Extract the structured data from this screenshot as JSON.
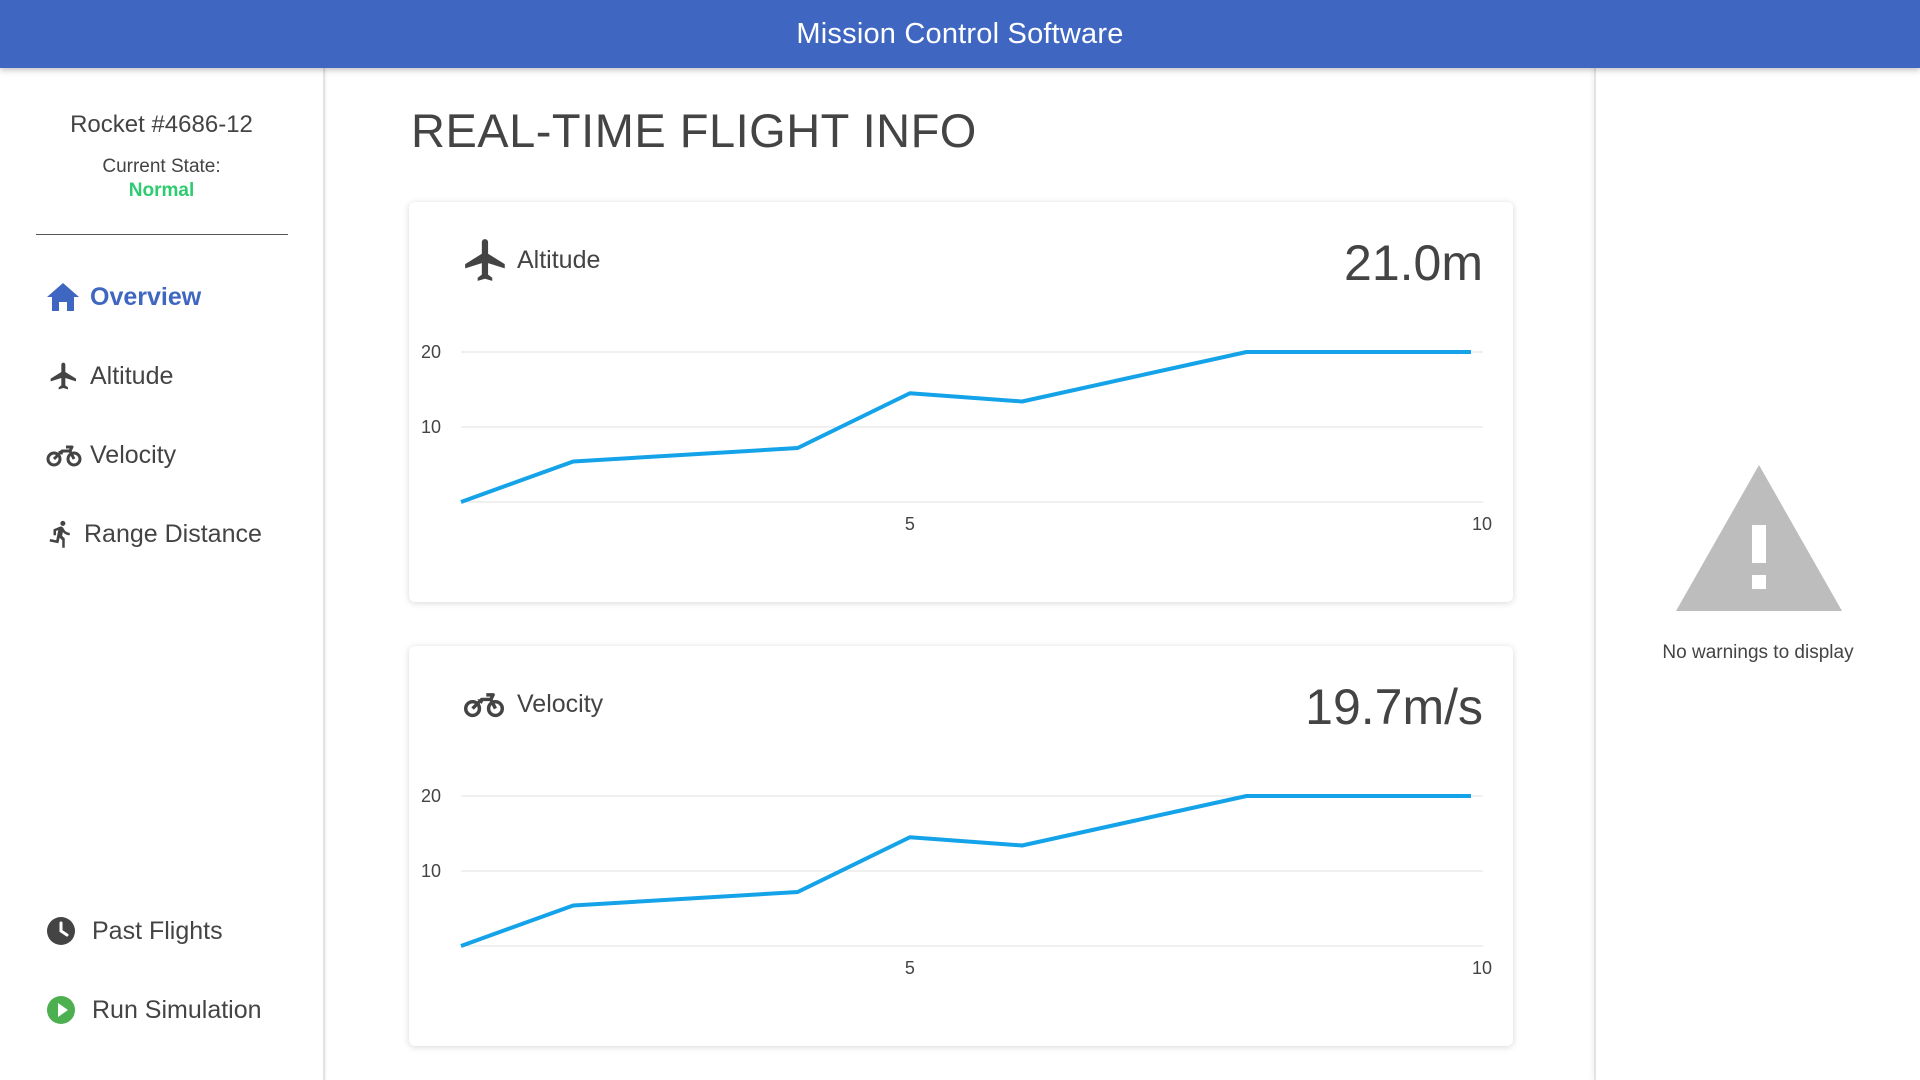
{
  "app": {
    "title": "Mission Control Software"
  },
  "sidebar": {
    "rocket_name": "Rocket #4686-12",
    "state_label": "Current State:",
    "state_value": "Normal",
    "state_color": "#2ecc71",
    "nav": [
      {
        "label": "Overview",
        "icon": "home-icon",
        "active": true
      },
      {
        "label": "Altitude",
        "icon": "airplane-icon",
        "active": false
      },
      {
        "label": "Velocity",
        "icon": "motorcycle-icon",
        "active": false
      },
      {
        "label": "Range Distance",
        "icon": "running-person-icon",
        "active": false
      }
    ],
    "bottom_nav": [
      {
        "label": "Past Flights",
        "icon": "clock-icon"
      },
      {
        "label": "Run Simulation",
        "icon": "play-circle-icon"
      }
    ]
  },
  "main": {
    "title": "REAL-TIME FLIGHT INFO",
    "cards": [
      {
        "label": "Altitude",
        "icon": "airplane-icon",
        "value": "21.0m"
      },
      {
        "label": "Velocity",
        "icon": "motorcycle-icon",
        "value": "19.7m/s"
      }
    ]
  },
  "warnings": {
    "message": "No warnings to display",
    "icon": "warning-triangle-icon"
  },
  "colors": {
    "accent": "#3f67c1",
    "line": "#14a3e8",
    "normal": "#2ecc71",
    "play": "#4caf50",
    "warning": "#bdbdbd"
  },
  "chart_data": [
    {
      "type": "line",
      "x": [
        1,
        2,
        3,
        4,
        5,
        6,
        7,
        8,
        9,
        10
      ],
      "series": [
        {
          "values": [
            0,
            5.4,
            6.3,
            7.2,
            14.5,
            13.4,
            16.7,
            20,
            20,
            20
          ]
        }
      ],
      "x_ticks": [
        5,
        10
      ],
      "y_ticks": [
        10,
        20
      ],
      "xlim": [
        1,
        10
      ],
      "ylim": [
        0,
        20
      ],
      "grid": true
    },
    {
      "type": "line",
      "x": [
        1,
        2,
        3,
        4,
        5,
        6,
        7,
        8,
        9,
        10
      ],
      "series": [
        {
          "values": [
            0,
            5.4,
            6.3,
            7.2,
            14.5,
            13.4,
            16.7,
            20,
            20,
            20
          ]
        }
      ],
      "x_ticks": [
        5,
        10
      ],
      "y_ticks": [
        10,
        20
      ],
      "xlim": [
        1,
        10
      ],
      "ylim": [
        0,
        20
      ],
      "grid": true
    }
  ]
}
